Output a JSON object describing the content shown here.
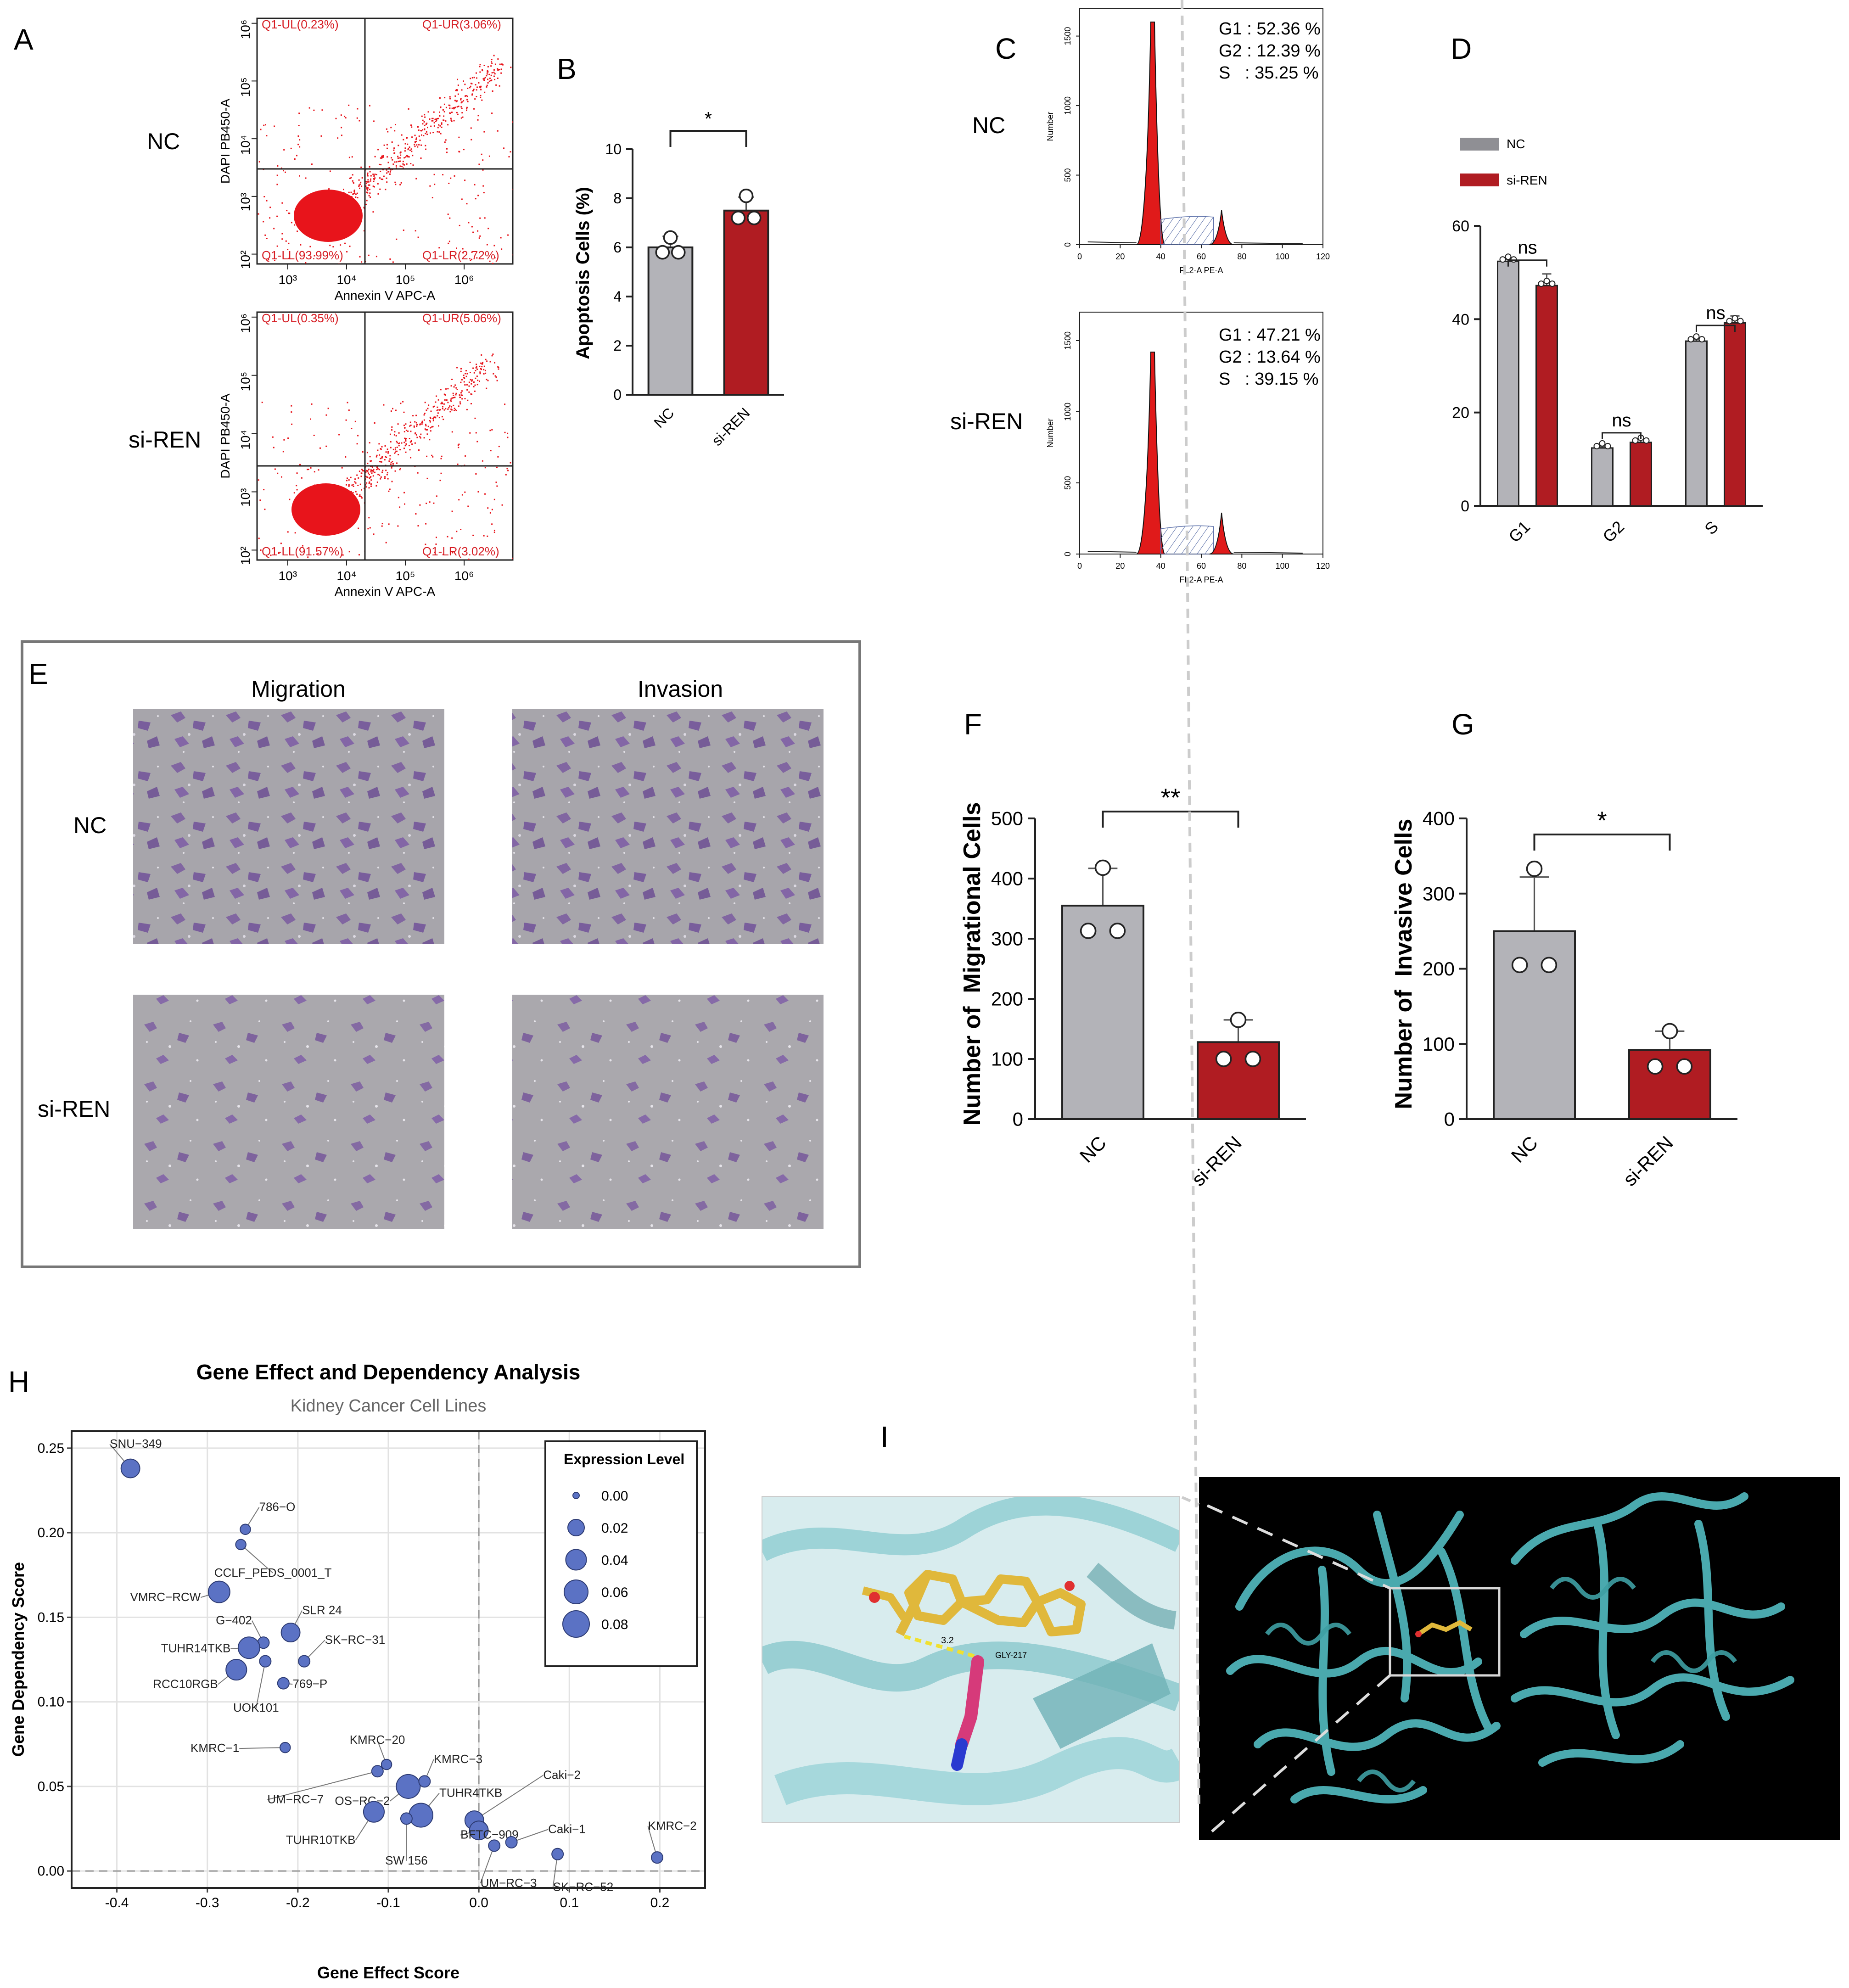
{
  "panels": {
    "A": {
      "letter": "A",
      "conditions": [
        "NC",
        "si-REN"
      ],
      "x_axis_label": "Annexin V APC-A",
      "y_axis_label": "DAPI PB450-A",
      "x_ticks": [
        "10³",
        "10⁴",
        "10⁵",
        "10⁶"
      ],
      "y_ticks": [
        "10²",
        "10³",
        "10⁴",
        "10⁵",
        "10⁶"
      ],
      "dot_color": "#e8141b",
      "plots": [
        {
          "condition": "NC",
          "UL": "Q1-UL(0.23%)",
          "UR": "Q1-UR(3.06%)",
          "LL": "Q1-LL(93.99%)",
          "LR": "Q1-LR(2.72%)"
        },
        {
          "condition": "si-REN",
          "UL": "Q1-UL(0.35%)",
          "UR": "Q1-UR(5.06%)",
          "LL": "Q1-LL(91.57%)",
          "LR": "Q1-LR(3.02%)"
        }
      ]
    },
    "B": {
      "letter": "B",
      "ylabel": "Apoptosis Cells (%)",
      "significance": "*",
      "chart_data": {
        "type": "bar",
        "categories": [
          "NC",
          "si-REN"
        ],
        "values": [
          6.0,
          7.5
        ],
        "errors": [
          0.45,
          0.55
        ],
        "points": [
          [
            6.4,
            5.8,
            5.8
          ],
          [
            8.1,
            7.2,
            7.2
          ]
        ],
        "ylim": [
          0,
          10
        ],
        "yticks": [
          0,
          2,
          4,
          6,
          8,
          10
        ],
        "colors": [
          "#b3b3b8",
          "#b01c22"
        ]
      }
    },
    "C": {
      "letter": "C",
      "conditions": [
        "NC",
        "si-REN"
      ],
      "x_axis_label": "FL2-A PE-A",
      "y_axis_label": "Number",
      "x_ticks": [
        "0",
        "20",
        "40",
        "60",
        "80",
        "100",
        "120"
      ],
      "y_ticks": [
        "0",
        "500",
        "1000",
        "1500"
      ],
      "stats": [
        {
          "condition": "NC",
          "lines": [
            "G1 : 52.36 %",
            "G2 : 12.39 %",
            "S   : 35.25 %"
          ]
        },
        {
          "condition": "si-REN",
          "lines": [
            "G1 : 47.21 %",
            "G2 : 13.64 %",
            "S   : 39.15 %"
          ]
        }
      ]
    },
    "D": {
      "letter": "D",
      "legend": [
        "NC",
        "si-REN"
      ],
      "significance": [
        "ns",
        "ns",
        "ns"
      ],
      "chart_data": {
        "type": "bar",
        "categories": [
          "G1",
          "G2",
          "S"
        ],
        "series": [
          {
            "name": "NC",
            "values": [
              52.4,
              12.4,
              35.3
            ],
            "errors": [
              0.4,
              0.3,
              0.4
            ],
            "color": "#b3b3b8"
          },
          {
            "name": "si-REN",
            "values": [
              47.2,
              13.6,
              39.2
            ],
            "errors": [
              2.5,
              0.6,
              1.5
            ],
            "color": "#b01c22"
          }
        ],
        "ylim": [
          0,
          60
        ],
        "yticks": [
          0,
          20,
          40,
          60
        ]
      }
    },
    "E": {
      "letter": "E",
      "columns": [
        "Migration",
        "Invasion"
      ],
      "rows": [
        "NC",
        "si-REN"
      ]
    },
    "F": {
      "letter": "F",
      "ylabel": "Number of  Migrational Cells",
      "significance": "**",
      "chart_data": {
        "type": "bar",
        "categories": [
          "NC",
          "si-REN"
        ],
        "values": [
          355,
          128
        ],
        "errors": [
          62,
          37
        ],
        "points": [
          [
            418,
            313,
            313
          ],
          [
            165,
            100,
            100
          ]
        ],
        "ylim": [
          0,
          500
        ],
        "yticks": [
          0,
          100,
          200,
          300,
          400,
          500
        ],
        "colors": [
          "#b3b3b8",
          "#b01c22"
        ]
      }
    },
    "G": {
      "letter": "G",
      "ylabel": "Number of  Invasive Cells",
      "significance": "*",
      "chart_data": {
        "type": "bar",
        "categories": [
          "NC",
          "si-REN"
        ],
        "values": [
          250,
          92
        ],
        "errors": [
          72,
          25
        ],
        "points": [
          [
            333,
            205,
            205
          ],
          [
            117,
            70,
            70
          ]
        ],
        "ylim": [
          0,
          400
        ],
        "yticks": [
          0,
          100,
          200,
          300,
          400
        ],
        "colors": [
          "#b3b3b8",
          "#b01c22"
        ]
      }
    },
    "H": {
      "letter": "H",
      "chart_data": {
        "type": "scatter",
        "title": "Gene Effect and Dependency Analysis",
        "subtitle": "Kidney Cancer Cell Lines",
        "xlabel": "Gene Effect Score",
        "ylabel": "Gene Dependency Score",
        "xlim": [
          -0.45,
          0.25
        ],
        "ylim": [
          -0.01,
          0.26
        ],
        "xticks": [
          -0.4,
          -0.3,
          -0.2,
          -0.1,
          0.0,
          0.1,
          0.2
        ],
        "yticks": [
          0.0,
          0.05,
          0.1,
          0.15,
          0.2,
          0.25
        ],
        "legend_title": "Expression Level",
        "legend_sizes": [
          0.0,
          0.02,
          0.04,
          0.06,
          0.08
        ],
        "point_color": "#5b72c4",
        "points": [
          {
            "label": "SNU−349",
            "x": -0.385,
            "y": 0.238,
            "size": 0.03
          },
          {
            "label": "786−O",
            "x": -0.258,
            "y": 0.202,
            "size": 0.003
          },
          {
            "label": "CCLF_PEDS_0001_T",
            "x": -0.263,
            "y": 0.193,
            "size": 0.003
          },
          {
            "label": "VMRC−RCW",
            "x": -0.287,
            "y": 0.165,
            "size": 0.045
          },
          {
            "label": "SLR 24",
            "x": -0.208,
            "y": 0.141,
            "size": 0.03
          },
          {
            "label": "G−402",
            "x": -0.238,
            "y": 0.135,
            "size": 0.005
          },
          {
            "label": "SK−RC−31",
            "x": -0.193,
            "y": 0.124,
            "size": 0.005
          },
          {
            "label": "TUHR14TKB",
            "x": -0.254,
            "y": 0.132,
            "size": 0.045
          },
          {
            "label": "UOK101",
            "x": -0.236,
            "y": 0.124,
            "size": 0.005
          },
          {
            "label": "RCC10RGB",
            "x": -0.268,
            "y": 0.119,
            "size": 0.04
          },
          {
            "label": "769−P",
            "x": -0.216,
            "y": 0.111,
            "size": 0.005
          },
          {
            "label": "KMRC−1",
            "x": -0.214,
            "y": 0.073,
            "size": 0.003
          },
          {
            "label": "KMRC−20",
            "x": -0.102,
            "y": 0.063,
            "size": 0.003
          },
          {
            "label": "UM−RC−7",
            "x": -0.112,
            "y": 0.059,
            "size": 0.005
          },
          {
            "label": "OS−RC−2",
            "x": -0.078,
            "y": 0.05,
            "size": 0.06
          },
          {
            "label": "KMRC−3",
            "x": -0.06,
            "y": 0.053,
            "size": 0.005
          },
          {
            "label": "TUHR4TKB",
            "x": -0.064,
            "y": 0.033,
            "size": 0.06
          },
          {
            "label": "TUHR10TKB",
            "x": -0.116,
            "y": 0.035,
            "size": 0.04
          },
          {
            "label": "SW 156",
            "x": -0.08,
            "y": 0.031,
            "size": 0.005
          },
          {
            "label": "Caki−2",
            "x": -0.005,
            "y": 0.03,
            "size": 0.03
          },
          {
            "label": "BFTC−909",
            "x": 0.0,
            "y": 0.024,
            "size": 0.03
          },
          {
            "label": "Caki−1",
            "x": 0.036,
            "y": 0.017,
            "size": 0.005
          },
          {
            "label": "UM−RC−3",
            "x": 0.017,
            "y": 0.015,
            "size": 0.005
          },
          {
            "label": "SK−RC−52",
            "x": 0.087,
            "y": 0.01,
            "size": 0.005
          },
          {
            "label": "KMRC−2",
            "x": 0.197,
            "y": 0.008,
            "size": 0.005
          }
        ]
      }
    },
    "I": {
      "letter": "I",
      "residue_label": "GLY-217",
      "distance_label": "3.2",
      "protein_color": "#4fb3b8"
    }
  }
}
